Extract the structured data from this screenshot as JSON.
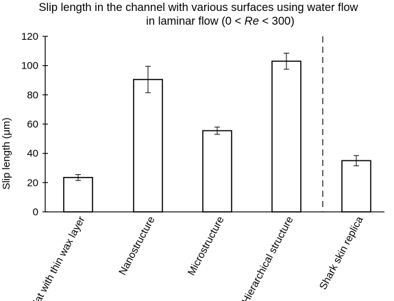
{
  "chart_data": {
    "type": "bar",
    "title_line1": "Slip length in the channel with various surfaces using water flow",
    "title_line2_pre": "in laminar flow (0 < ",
    "title_line2_em": "Re",
    "title_line2_post": " < 300)",
    "ylabel": "Slip length (μm)",
    "xlabel": "",
    "ylim": [
      0,
      120
    ],
    "yticks": [
      0,
      20,
      40,
      60,
      80,
      100,
      120
    ],
    "ytick_labels": [
      "0",
      "20",
      "40",
      "60",
      "80",
      "100",
      "120"
    ],
    "categories": [
      "Flat with thin wax layer",
      "Nanostructure",
      "Microstructure",
      "Hierarchical structure",
      "Shark skin replica"
    ],
    "values": [
      23.5,
      90.5,
      55.5,
      103,
      35
    ],
    "errors": [
      2,
      9,
      2.5,
      5.5,
      3.5
    ],
    "divider_after_index": 3,
    "grid": false,
    "legend": "none",
    "bar_fill": "#ffffff",
    "bar_stroke": "#000000"
  }
}
